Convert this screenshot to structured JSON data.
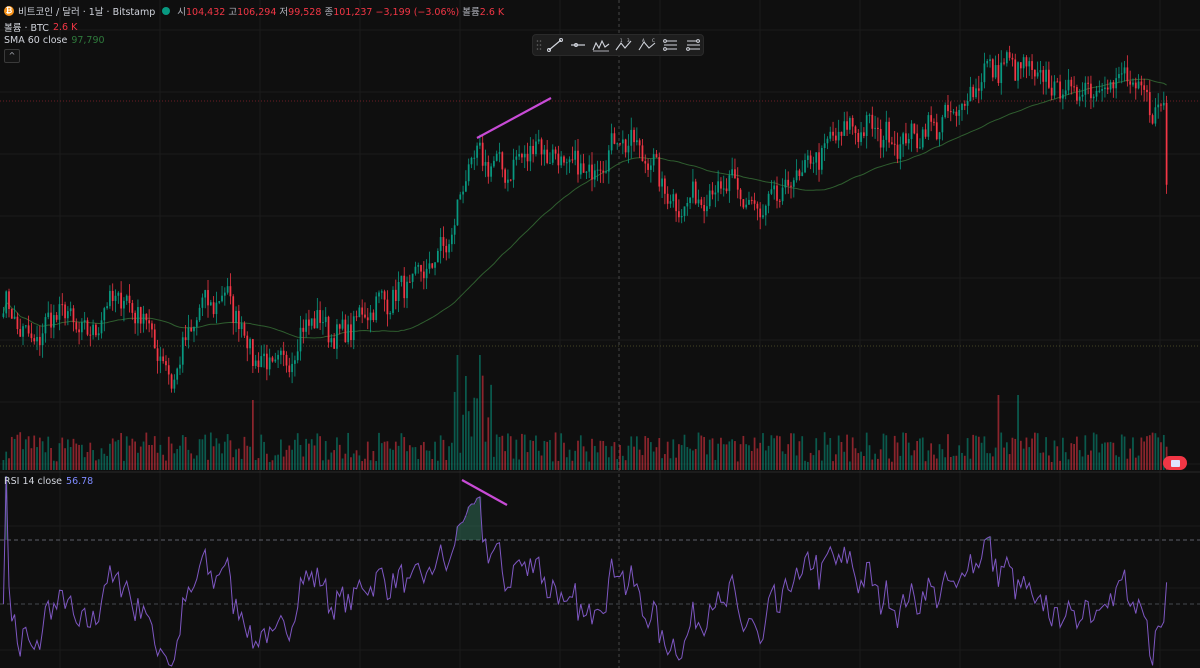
{
  "header": {
    "coin_icon_glyph": "₿",
    "symbol_title": "비트코인 / 달러 · 1날 · Bitstamp",
    "open_label": "시",
    "open_value": "104,432",
    "high_label": "고",
    "high_value": "106,294",
    "low_label": "저",
    "low_value": "99,528",
    "close_label": "종",
    "close_value": "101,237",
    "change_value": "−3,199 (−3.06%)",
    "volume_label": "볼륨",
    "volume_value": "2.6 K"
  },
  "volume_legend": {
    "label": "볼륨 · BTC",
    "value": "2.6 K"
  },
  "sma_legend": {
    "label": "SMA 60 close",
    "value": "97,790"
  },
  "rsi_legend": {
    "label": "RSI 14 close",
    "value": "56.78"
  },
  "collapse_glyph": "^",
  "toolbar": {
    "tools": [
      "drag-handle-icon",
      "trend-line-icon",
      "horizontal-ray-icon",
      "pattern-icon",
      "abcd-pattern-icon",
      "abc-wave-icon",
      "fib-retracement-icon",
      "fib-extension-icon"
    ]
  },
  "colors": {
    "up": "#089981",
    "down": "#f23645",
    "sma": "#2f5e2f",
    "rsi": "#7e57c2",
    "trendline": "#c84bd6",
    "background": "#0f0f0f",
    "grid": "#1b1b1b"
  },
  "chart_data": {
    "type": "candlestick",
    "symbol": "BTCUSD",
    "interval": "1D",
    "last_close": 101237,
    "sma_period": 60,
    "sma_last": 97790,
    "rsi_period": 14,
    "rsi_last": 56.78,
    "rsi_overbought": 70,
    "rsi_middle": 50,
    "price_anchor_points": [
      [
        0,
        85000
      ],
      [
        10,
        79000
      ],
      [
        20,
        84000
      ],
      [
        30,
        80000
      ],
      [
        40,
        86000
      ],
      [
        50,
        83000
      ],
      [
        60,
        74000
      ],
      [
        70,
        84000
      ],
      [
        80,
        86000
      ],
      [
        90,
        77000
      ],
      [
        100,
        76000
      ],
      [
        110,
        83000
      ],
      [
        120,
        80000
      ],
      [
        130,
        84000
      ],
      [
        140,
        86000
      ],
      [
        150,
        89000
      ],
      [
        160,
        94000
      ],
      [
        165,
        103000
      ],
      [
        170,
        105000
      ],
      [
        180,
        103000
      ],
      [
        190,
        107000
      ],
      [
        200,
        104000
      ],
      [
        210,
        103000
      ],
      [
        220,
        108000
      ],
      [
        230,
        105000
      ],
      [
        240,
        98000
      ],
      [
        250,
        100000
      ],
      [
        260,
        101000
      ],
      [
        270,
        97000
      ],
      [
        280,
        101000
      ],
      [
        290,
        105000
      ],
      [
        300,
        109000
      ],
      [
        310,
        109000
      ],
      [
        320,
        107000
      ],
      [
        330,
        109000
      ],
      [
        340,
        111000
      ],
      [
        350,
        117000
      ],
      [
        360,
        118000
      ],
      [
        370,
        116000
      ],
      [
        380,
        114000
      ],
      [
        390,
        115000
      ],
      [
        400,
        116000
      ],
      [
        410,
        112000
      ],
      [
        415,
        111500
      ]
    ]
  }
}
